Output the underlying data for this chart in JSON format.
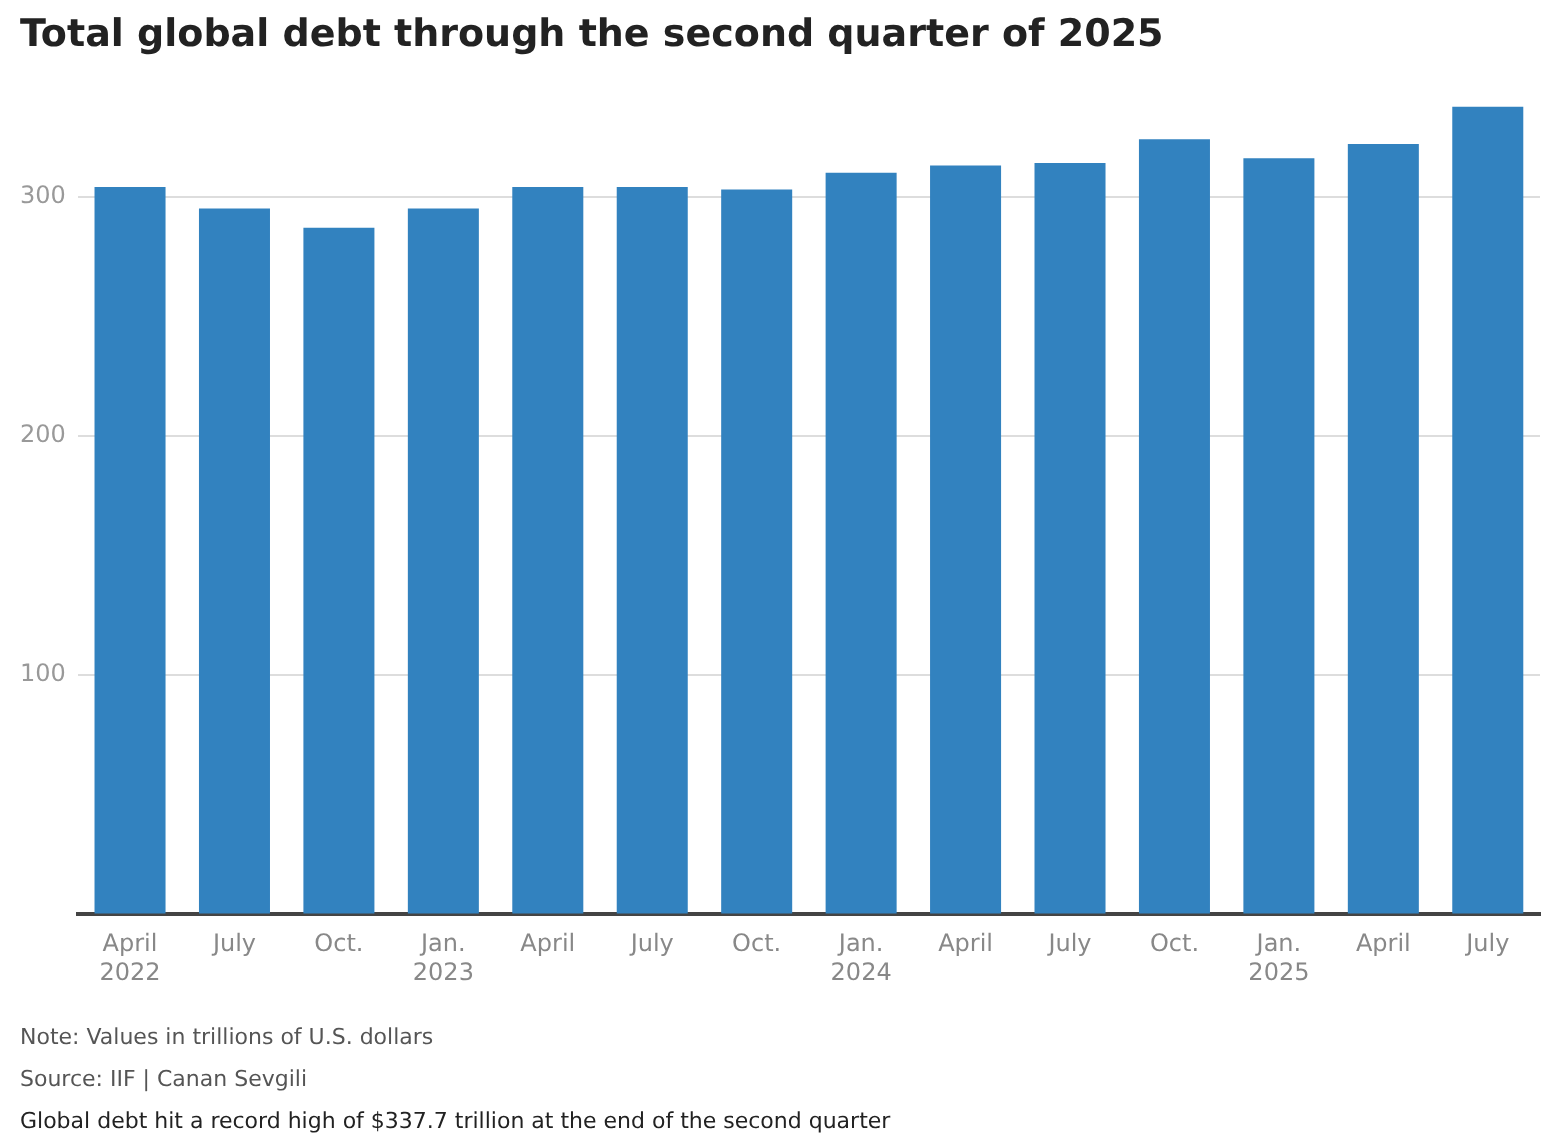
{
  "chart_data": {
    "type": "bar",
    "title": "Total global debt through the second quarter of 2025",
    "categories": [
      "April\n2022",
      "July",
      "Oct.",
      "Jan.\n2023",
      "April",
      "July",
      "Oct.",
      "Jan.\n2024",
      "April",
      "July",
      "Oct.",
      "Jan.\n2025",
      "April",
      "July"
    ],
    "values": [
      304,
      295,
      287,
      295,
      304,
      304,
      303,
      310,
      313,
      314,
      324,
      316,
      322,
      337.7
    ],
    "color": "#3282bf",
    "ylim": [
      0,
      337.7
    ],
    "yticks": [
      {
        "value": 0,
        "label": null
      },
      100,
      200,
      300
    ],
    "grid": "y",
    "legend": false,
    "annotations": [
      "Note: Values in trillions of U.S. dollars",
      "Source: IIF | Canan Sevgili",
      "Global debt hit a record high of $337.7 trillion at the end of the second quarter"
    ]
  }
}
